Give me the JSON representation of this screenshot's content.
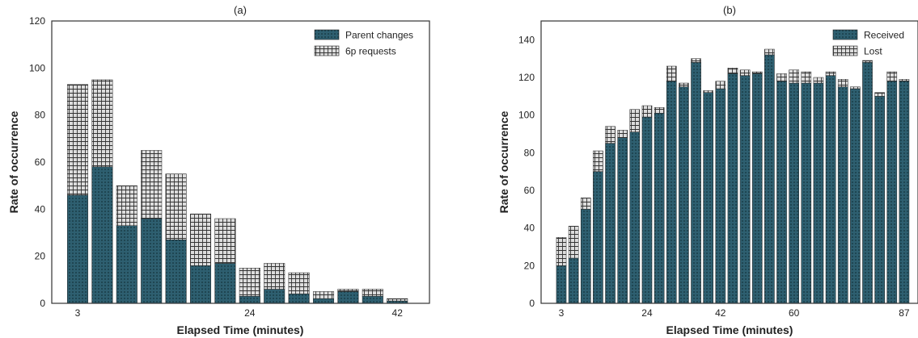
{
  "colors": {
    "bottom_fill": "#2e5f70",
    "bottom_dot": "#14333d",
    "top_fill": "#d9d9d9",
    "top_grid": "#333333",
    "frame": "#333333"
  },
  "chart_data": [
    {
      "type": "bar",
      "stacked": true,
      "title": "(a)",
      "xlabel": "Elapsed Time (minutes)",
      "ylabel": "Rate of occurrence",
      "ylim": [
        0,
        120
      ],
      "yticks": [
        "0",
        "20",
        "40",
        "60",
        "80",
        "100",
        "120"
      ],
      "xtick_labels": [
        {
          "index": 0,
          "label": "3"
        },
        {
          "index": 7,
          "label": "24"
        },
        {
          "index": 13,
          "label": "42"
        }
      ],
      "legend_placement": "top-right",
      "grid": false,
      "series": [
        {
          "name": "Parent changes",
          "values": [
            46,
            58,
            33,
            36,
            27,
            16,
            17,
            3,
            6,
            4,
            2,
            5,
            3,
            1
          ]
        },
        {
          "name": "6p requests",
          "values": [
            47,
            37,
            17,
            29,
            28,
            22,
            19,
            12,
            11,
            9,
            3,
            1,
            3,
            1
          ]
        }
      ]
    },
    {
      "type": "bar",
      "stacked": true,
      "title": "(b)",
      "xlabel": "Elapsed Time (minutes)",
      "ylabel": "Rate of occurrence",
      "ylim": [
        0,
        150
      ],
      "yticks": [
        "0",
        "20",
        "40",
        "60",
        "80",
        "100",
        "120",
        "140"
      ],
      "xtick_labels": [
        {
          "index": 0,
          "label": "3"
        },
        {
          "index": 7,
          "label": "24"
        },
        {
          "index": 13,
          "label": "42"
        },
        {
          "index": 19,
          "label": "60"
        },
        {
          "index": 28,
          "label": "87"
        }
      ],
      "legend_placement": "top-right",
      "grid": false,
      "series": [
        {
          "name": "Received",
          "values": [
            20,
            24,
            50,
            70,
            85,
            88,
            91,
            99,
            101,
            118,
            115,
            128,
            112,
            114,
            122,
            121,
            122,
            132,
            118,
            117,
            117,
            117,
            121,
            115,
            114,
            128,
            110,
            118,
            118
          ]
        },
        {
          "name": "Lost",
          "values": [
            15,
            17,
            6,
            11,
            9,
            4,
            12,
            6,
            3,
            8,
            2,
            2,
            1,
            4,
            3,
            3,
            1,
            3,
            4,
            7,
            6,
            3,
            2,
            4,
            1,
            1,
            2,
            5,
            1
          ]
        }
      ]
    }
  ]
}
